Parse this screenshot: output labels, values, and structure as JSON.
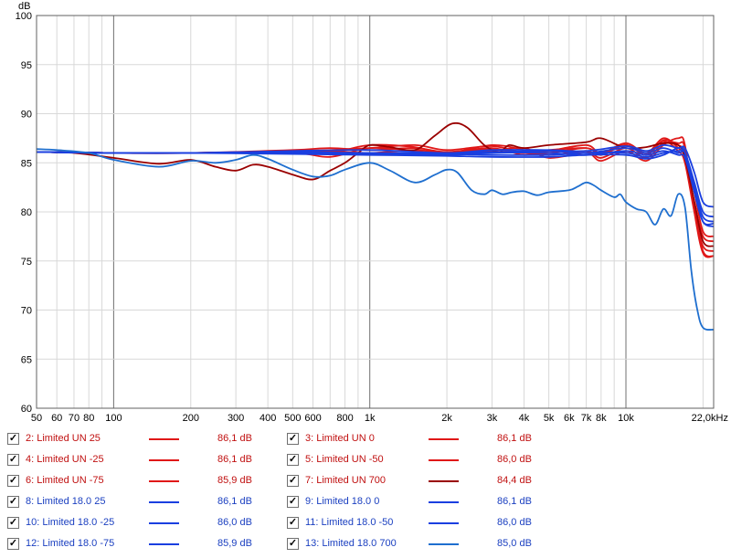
{
  "chart_data": {
    "type": "line",
    "ylabel": "dB",
    "xlabel": "",
    "x_scale": "log",
    "xlim": [
      50,
      22000
    ],
    "ylim": [
      60,
      100
    ],
    "y_ticks": [
      60,
      65,
      70,
      75,
      80,
      85,
      90,
      95,
      100
    ],
    "x_ticks": [
      {
        "v": 50,
        "label": "50"
      },
      {
        "v": 60,
        "label": "60"
      },
      {
        "v": 70,
        "label": "70"
      },
      {
        "v": 80,
        "label": "80"
      },
      {
        "v": 100,
        "label": "100"
      },
      {
        "v": 200,
        "label": "200"
      },
      {
        "v": 300,
        "label": "300"
      },
      {
        "v": 400,
        "label": "400"
      },
      {
        "v": 500,
        "label": "500"
      },
      {
        "v": 600,
        "label": "600"
      },
      {
        "v": 800,
        "label": "800"
      },
      {
        "v": 1000,
        "label": "1k"
      },
      {
        "v": 2000,
        "label": "2k"
      },
      {
        "v": 3000,
        "label": "3k"
      },
      {
        "v": 4000,
        "label": "4k"
      },
      {
        "v": 5000,
        "label": "5k"
      },
      {
        "v": 6000,
        "label": "6k"
      },
      {
        "v": 7000,
        "label": "7k"
      },
      {
        "v": 8000,
        "label": "8k"
      },
      {
        "v": 10000,
        "label": "10k"
      },
      {
        "v": 22000,
        "label": "22,0kHz"
      }
    ],
    "grid": true,
    "legend_position": "bottom",
    "series": [
      {
        "name": "2: Limited UN 25",
        "value_label": "86,1 dB",
        "color": "#e01818",
        "points": [
          [
            50,
            86.1
          ],
          [
            100,
            86.0
          ],
          [
            200,
            86.0
          ],
          [
            500,
            86.1
          ],
          [
            700,
            86.2
          ],
          [
            1000,
            86.0
          ],
          [
            1500,
            86.3
          ],
          [
            2000,
            86.0
          ],
          [
            3000,
            86.4
          ],
          [
            4000,
            86.0
          ],
          [
            5000,
            86.3
          ],
          [
            7000,
            86.5
          ],
          [
            8000,
            86.0
          ],
          [
            10000,
            86.8
          ],
          [
            12000,
            85.8
          ],
          [
            14000,
            87.2
          ],
          [
            16000,
            86.2
          ],
          [
            17000,
            85.0
          ],
          [
            18500,
            80.0
          ],
          [
            20000,
            76.5
          ],
          [
            22000,
            76.0
          ]
        ]
      },
      {
        "name": "3: Limited UN 0",
        "value_label": "86,1 dB",
        "color": "#e01818",
        "points": [
          [
            50,
            86.1
          ],
          [
            100,
            86.0
          ],
          [
            200,
            86.0
          ],
          [
            500,
            86.3
          ],
          [
            700,
            86.5
          ],
          [
            1000,
            86.3
          ],
          [
            1500,
            86.5
          ],
          [
            2000,
            86.1
          ],
          [
            3000,
            86.5
          ],
          [
            4000,
            85.8
          ],
          [
            5000,
            86.2
          ],
          [
            7000,
            86.8
          ],
          [
            8000,
            86.0
          ],
          [
            10000,
            87.0
          ],
          [
            12000,
            86.0
          ],
          [
            14000,
            87.5
          ],
          [
            16000,
            86.5
          ],
          [
            17000,
            85.5
          ],
          [
            18500,
            81.0
          ],
          [
            20000,
            77.5
          ],
          [
            22000,
            77.0
          ]
        ]
      },
      {
        "name": "4: Limited UN -25",
        "value_label": "86,1 dB",
        "color": "#e01818",
        "points": [
          [
            50,
            86.1
          ],
          [
            100,
            86.0
          ],
          [
            200,
            86.0
          ],
          [
            500,
            86.2
          ],
          [
            700,
            86.3
          ],
          [
            1000,
            86.5
          ],
          [
            1500,
            86.8
          ],
          [
            2000,
            86.3
          ],
          [
            3000,
            86.7
          ],
          [
            4000,
            86.0
          ],
          [
            5000,
            86.0
          ],
          [
            7000,
            86.5
          ],
          [
            8000,
            85.8
          ],
          [
            10000,
            86.8
          ],
          [
            12000,
            85.8
          ],
          [
            14000,
            87.3
          ],
          [
            16000,
            86.8
          ],
          [
            17000,
            86.0
          ],
          [
            18500,
            82.0
          ],
          [
            20000,
            78.0
          ],
          [
            22000,
            77.5
          ]
        ]
      },
      {
        "name": "5: Limited UN -50",
        "value_label": "86,0 dB",
        "color": "#e01818",
        "points": [
          [
            50,
            86.1
          ],
          [
            100,
            86.0
          ],
          [
            200,
            86.0
          ],
          [
            500,
            86.1
          ],
          [
            700,
            86.0
          ],
          [
            1000,
            86.8
          ],
          [
            1500,
            86.6
          ],
          [
            2000,
            86.0
          ],
          [
            3000,
            86.8
          ],
          [
            4000,
            86.3
          ],
          [
            5000,
            85.8
          ],
          [
            7000,
            86.2
          ],
          [
            8000,
            85.5
          ],
          [
            10000,
            86.5
          ],
          [
            12000,
            85.5
          ],
          [
            14000,
            87.0
          ],
          [
            16000,
            87.0
          ],
          [
            17000,
            86.5
          ],
          [
            18500,
            80.5
          ],
          [
            20000,
            76.0
          ],
          [
            22000,
            75.5
          ]
        ]
      },
      {
        "name": "6: Limited UN -75",
        "value_label": "85,9 dB",
        "color": "#e01818",
        "points": [
          [
            50,
            86.1
          ],
          [
            100,
            86.0
          ],
          [
            200,
            86.0
          ],
          [
            500,
            86.0
          ],
          [
            700,
            85.6
          ],
          [
            1000,
            86.5
          ],
          [
            1500,
            86.2
          ],
          [
            2000,
            85.8
          ],
          [
            3000,
            86.2
          ],
          [
            4000,
            86.5
          ],
          [
            5000,
            85.5
          ],
          [
            7000,
            86.0
          ],
          [
            8000,
            85.2
          ],
          [
            10000,
            86.2
          ],
          [
            12000,
            85.2
          ],
          [
            14000,
            86.8
          ],
          [
            16000,
            87.5
          ],
          [
            17000,
            86.8
          ],
          [
            18500,
            80.0
          ],
          [
            20000,
            75.8
          ],
          [
            22000,
            75.5
          ]
        ]
      },
      {
        "name": "7: Limited UN 700",
        "value_label": "84,4 dB",
        "color": "#9a0000",
        "points": [
          [
            50,
            86.1
          ],
          [
            70,
            86.0
          ],
          [
            100,
            85.5
          ],
          [
            150,
            84.9
          ],
          [
            200,
            85.3
          ],
          [
            250,
            84.6
          ],
          [
            300,
            84.2
          ],
          [
            350,
            84.8
          ],
          [
            400,
            84.6
          ],
          [
            500,
            83.8
          ],
          [
            600,
            83.3
          ],
          [
            700,
            84.2
          ],
          [
            800,
            85.0
          ],
          [
            900,
            86.0
          ],
          [
            1000,
            86.8
          ],
          [
            1200,
            86.6
          ],
          [
            1500,
            86.3
          ],
          [
            1800,
            87.8
          ],
          [
            2100,
            89.0
          ],
          [
            2400,
            88.6
          ],
          [
            2800,
            86.8
          ],
          [
            3200,
            86.1
          ],
          [
            3500,
            86.8
          ],
          [
            4000,
            86.5
          ],
          [
            5000,
            86.8
          ],
          [
            7000,
            87.1
          ],
          [
            8000,
            87.5
          ],
          [
            10000,
            86.5
          ],
          [
            12000,
            86.6
          ],
          [
            14000,
            87.0
          ],
          [
            16000,
            86.8
          ],
          [
            17000,
            85.5
          ],
          [
            18500,
            81.0
          ],
          [
            20000,
            77.0
          ],
          [
            22000,
            76.5
          ]
        ]
      },
      {
        "name": "8: Limited 18.0 25",
        "value_label": "86,1 dB",
        "color": "#1a3fe0",
        "points": [
          [
            50,
            86.1
          ],
          [
            100,
            86.0
          ],
          [
            200,
            86.0
          ],
          [
            500,
            86.1
          ],
          [
            1000,
            86.0
          ],
          [
            2000,
            86.0
          ],
          [
            3000,
            86.1
          ],
          [
            5000,
            86.2
          ],
          [
            7000,
            86.0
          ],
          [
            10000,
            86.5
          ],
          [
            12000,
            86.0
          ],
          [
            14000,
            86.5
          ],
          [
            16000,
            86.0
          ],
          [
            17000,
            86.0
          ],
          [
            18500,
            83.0
          ],
          [
            20000,
            80.0
          ],
          [
            22000,
            79.5
          ]
        ]
      },
      {
        "name": "9: Limited 18.0 0",
        "value_label": "86,1 dB",
        "color": "#1a3fe0",
        "points": [
          [
            50,
            86.1
          ],
          [
            100,
            86.0
          ],
          [
            200,
            86.0
          ],
          [
            500,
            86.2
          ],
          [
            1000,
            86.3
          ],
          [
            2000,
            86.0
          ],
          [
            3000,
            86.3
          ],
          [
            5000,
            86.3
          ],
          [
            7000,
            86.2
          ],
          [
            10000,
            86.7
          ],
          [
            12000,
            86.2
          ],
          [
            14000,
            86.8
          ],
          [
            16000,
            86.5
          ],
          [
            17000,
            86.5
          ],
          [
            18500,
            84.0
          ],
          [
            20000,
            81.0
          ],
          [
            22000,
            80.5
          ]
        ]
      },
      {
        "name": "10: Limited 18.0 -25",
        "value_label": "86,0 dB",
        "color": "#1a3fe0",
        "points": [
          [
            50,
            86.1
          ],
          [
            100,
            86.0
          ],
          [
            200,
            86.0
          ],
          [
            500,
            86.0
          ],
          [
            1000,
            85.9
          ],
          [
            2000,
            85.8
          ],
          [
            3000,
            86.0
          ],
          [
            5000,
            86.0
          ],
          [
            7000,
            85.8
          ],
          [
            10000,
            86.2
          ],
          [
            12000,
            85.8
          ],
          [
            14000,
            86.2
          ],
          [
            16000,
            85.8
          ],
          [
            17000,
            85.5
          ],
          [
            18500,
            82.0
          ],
          [
            20000,
            79.0
          ],
          [
            22000,
            78.5
          ]
        ]
      },
      {
        "name": "11: Limited 18.0 -50",
        "value_label": "86,0 dB",
        "color": "#1a3fe0",
        "points": [
          [
            50,
            86.1
          ],
          [
            100,
            86.0
          ],
          [
            200,
            86.0
          ],
          [
            500,
            86.0
          ],
          [
            1000,
            86.0
          ],
          [
            2000,
            85.9
          ],
          [
            3000,
            85.8
          ],
          [
            5000,
            85.8
          ],
          [
            7000,
            86.0
          ],
          [
            10000,
            86.0
          ],
          [
            12000,
            85.6
          ],
          [
            14000,
            86.0
          ],
          [
            16000,
            86.2
          ],
          [
            17000,
            86.0
          ],
          [
            18500,
            82.5
          ],
          [
            20000,
            79.5
          ],
          [
            22000,
            79.0
          ]
        ]
      },
      {
        "name": "12: Limited 18.0 -75",
        "value_label": "85,9 dB",
        "color": "#1a3fe0",
        "points": [
          [
            50,
            86.1
          ],
          [
            100,
            86.0
          ],
          [
            200,
            86.0
          ],
          [
            500,
            85.9
          ],
          [
            1000,
            85.8
          ],
          [
            2000,
            85.7
          ],
          [
            3000,
            85.6
          ],
          [
            5000,
            85.6
          ],
          [
            7000,
            85.8
          ],
          [
            10000,
            85.8
          ],
          [
            12000,
            85.4
          ],
          [
            14000,
            85.8
          ],
          [
            16000,
            86.5
          ],
          [
            17000,
            86.0
          ],
          [
            18500,
            82.0
          ],
          [
            20000,
            79.0
          ],
          [
            22000,
            78.8
          ]
        ]
      },
      {
        "name": "13: Limited 18.0 700",
        "value_label": "85,0 dB",
        "color": "#1f6fcf",
        "points": [
          [
            50,
            86.4
          ],
          [
            60,
            86.3
          ],
          [
            80,
            86.0
          ],
          [
            100,
            85.3
          ],
          [
            150,
            84.6
          ],
          [
            200,
            85.2
          ],
          [
            250,
            85.0
          ],
          [
            300,
            85.3
          ],
          [
            350,
            85.8
          ],
          [
            400,
            85.4
          ],
          [
            500,
            84.3
          ],
          [
            600,
            83.6
          ],
          [
            700,
            83.7
          ],
          [
            800,
            84.3
          ],
          [
            1000,
            85.0
          ],
          [
            1200,
            84.2
          ],
          [
            1500,
            83.0
          ],
          [
            1800,
            83.8
          ],
          [
            2000,
            84.3
          ],
          [
            2200,
            84.0
          ],
          [
            2500,
            82.2
          ],
          [
            2800,
            81.8
          ],
          [
            3000,
            82.2
          ],
          [
            3300,
            81.8
          ],
          [
            3600,
            82.0
          ],
          [
            4000,
            82.1
          ],
          [
            4500,
            81.7
          ],
          [
            5000,
            82.0
          ],
          [
            6000,
            82.2
          ],
          [
            6500,
            82.6
          ],
          [
            7000,
            83.0
          ],
          [
            7500,
            82.7
          ],
          [
            8000,
            82.2
          ],
          [
            9000,
            81.5
          ],
          [
            9500,
            81.8
          ],
          [
            10000,
            81.0
          ],
          [
            11000,
            80.3
          ],
          [
            12000,
            80.0
          ],
          [
            13000,
            78.7
          ],
          [
            14000,
            80.3
          ],
          [
            15000,
            79.6
          ],
          [
            16000,
            81.8
          ],
          [
            17000,
            80.5
          ],
          [
            18000,
            74.0
          ],
          [
            19000,
            70.0
          ],
          [
            20000,
            68.2
          ],
          [
            22000,
            68.0
          ]
        ]
      }
    ]
  }
}
